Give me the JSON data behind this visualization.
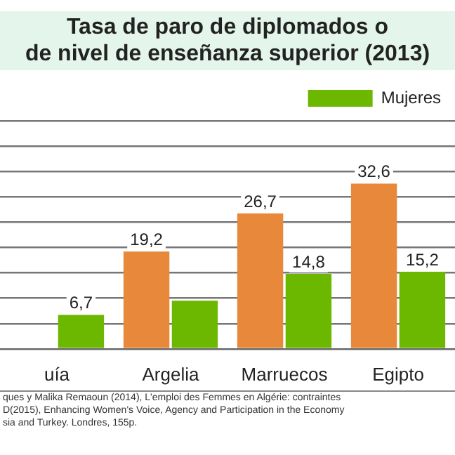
{
  "chart_data": {
    "type": "bar",
    "title": "Tasa de paro de diplomados o\nde nivel de enseñanza superior (2013)",
    "categories": [
      "uía",
      "Argelia",
      "Marruecos",
      "Egipto"
    ],
    "series": [
      {
        "color": "#e8883a",
        "values": [
          null,
          19.2,
          26.7,
          32.6
        ],
        "value_labels": [
          null,
          "19,2",
          "26,7",
          "32,6"
        ]
      },
      {
        "name": "Mujeres",
        "color": "#6cb800",
        "values": [
          6.7,
          9.5,
          14.8,
          15.2
        ],
        "value_labels": [
          "6,7",
          null,
          "14,8",
          "15,2"
        ]
      }
    ],
    "ylim": [
      0,
      45
    ],
    "yticks": [
      {
        "value": 0,
        "label": null
      },
      {
        "value": 5,
        "label": null
      },
      {
        "value": 10,
        "label": null
      },
      {
        "value": 15,
        "label": null
      },
      {
        "value": 20,
        "label": null
      },
      {
        "value": 25,
        "label": null
      },
      {
        "value": 30,
        "label": null
      },
      {
        "value": 35,
        "label": null
      },
      {
        "value": 40,
        "label": null
      },
      {
        "value": 45,
        "label": null
      }
    ],
    "grid": "y",
    "tick_labels": "x",
    "legend": "top right",
    "annotations": [
      "ques y Malika Remaoun (2014), L'emploi des Femmes en Algérie: contraintes",
      "D(2015), Enhancing Women's Voice, Agency and Participation in the Economy",
      "sia and Turkey. Londres, 155p."
    ]
  }
}
